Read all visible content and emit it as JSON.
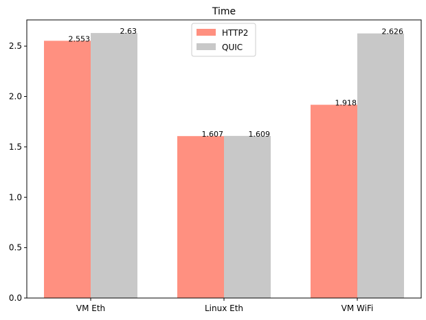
{
  "chart_data": {
    "type": "bar",
    "title": "Time",
    "categories": [
      "VM Eth",
      "Linux Eth",
      "VM WiFi"
    ],
    "series": [
      {
        "name": "HTTP2",
        "values": [
          2.553,
          1.607,
          1.918
        ],
        "labels": [
          "2.553",
          "1.607",
          "1.918"
        ],
        "color": "#ff9080"
      },
      {
        "name": "QUIC",
        "values": [
          2.63,
          1.609,
          2.626
        ],
        "labels": [
          "2.63",
          "1.609",
          "2.626"
        ],
        "color": "#c8c8c8"
      }
    ],
    "ylim": [
      0,
      2.76
    ],
    "yticks": [
      0.0,
      0.5,
      1.0,
      1.5,
      2.0,
      2.5
    ],
    "ytick_labels": [
      "0.0",
      "0.5",
      "1.0",
      "1.5",
      "2.0",
      "2.5"
    ],
    "legend_position": "top-center",
    "grid": false,
    "xlabel": "",
    "ylabel": ""
  }
}
